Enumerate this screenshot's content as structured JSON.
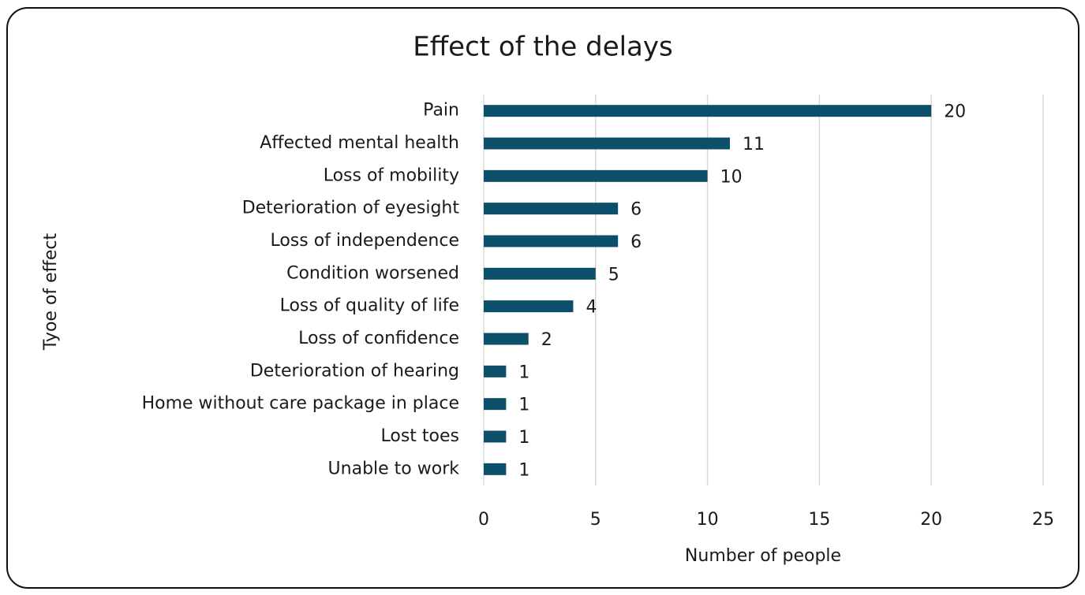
{
  "chart_data": {
    "type": "bar",
    "orientation": "horizontal",
    "title": "Effect of the delays",
    "x_label": "Number of people",
    "y_label": "Tyoe of effect",
    "categories": [
      "Pain",
      "Affected mental health",
      "Loss of mobility",
      "Deterioration of eyesight",
      "Loss of independence",
      "Condition worsened",
      "Loss of quality of life",
      "Loss of confidence",
      "Deterioration of hearing",
      "Home without care package in place",
      "Lost toes",
      "Unable to work"
    ],
    "values": [
      20,
      11,
      10,
      6,
      6,
      5,
      4,
      2,
      1,
      1,
      1,
      1
    ],
    "color": "#0b4f6b",
    "xlim": [
      0,
      25
    ],
    "xticks": [
      0,
      5,
      10,
      15,
      20,
      25
    ],
    "grid": true
  }
}
